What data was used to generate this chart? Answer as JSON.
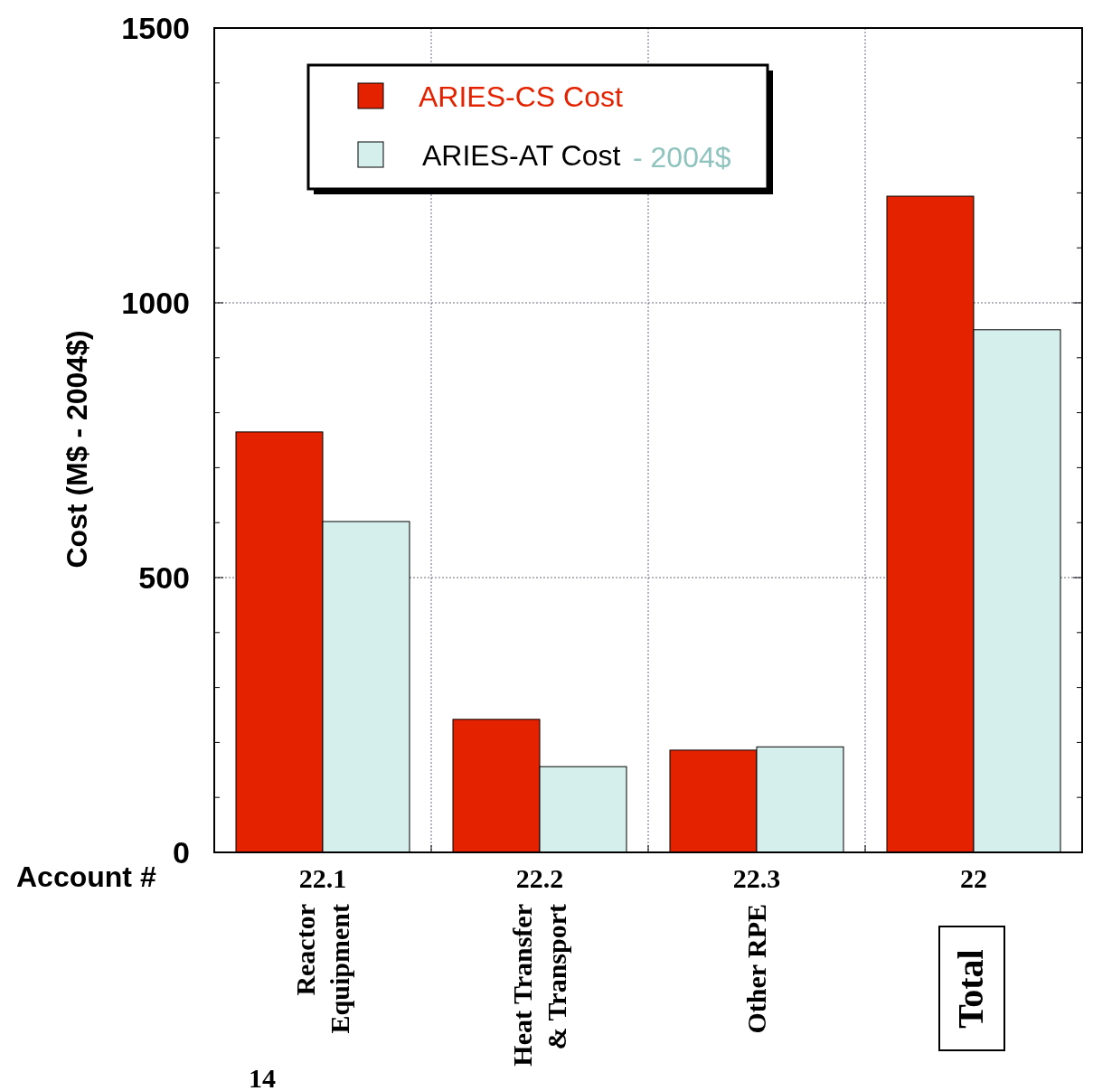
{
  "chart_data": {
    "type": "bar",
    "ylabel": "Cost (M$ - 2004$)",
    "categories": [
      "22.1\nReactor\nEquipment",
      "22.2\nHeat Transfer\n& Transport",
      "22.3\nOther RPE",
      "22\nTotal"
    ],
    "series": [
      {
        "name": "ARIES-CS Cost",
        "color": "#e52200",
        "values": [
          765,
          242,
          186,
          1194
        ]
      },
      {
        "name": "ARIES-AT Cost",
        "color": "#d5efec",
        "values": [
          602,
          156,
          192,
          951
        ]
      }
    ],
    "ylim": [
      0,
      1500
    ],
    "yticks": [
      0,
      {
        "value": 100,
        "label": null
      },
      {
        "value": 200,
        "label": null
      },
      {
        "value": 300,
        "label": null
      },
      {
        "value": 400,
        "label": null
      },
      500,
      {
        "value": 600,
        "label": null
      },
      {
        "value": 700,
        "label": null
      },
      {
        "value": 800,
        "label": null
      },
      {
        "value": 900,
        "label": null
      },
      1000,
      {
        "value": 1100,
        "label": null
      },
      {
        "value": 1200,
        "label": null
      },
      {
        "value": 1300,
        "label": null
      },
      {
        "value": 1400,
        "label": null
      },
      1500
    ],
    "grid": true,
    "legend": "top",
    "annotations": [
      "Account #",
      "- 2004$",
      "14"
    ]
  }
}
